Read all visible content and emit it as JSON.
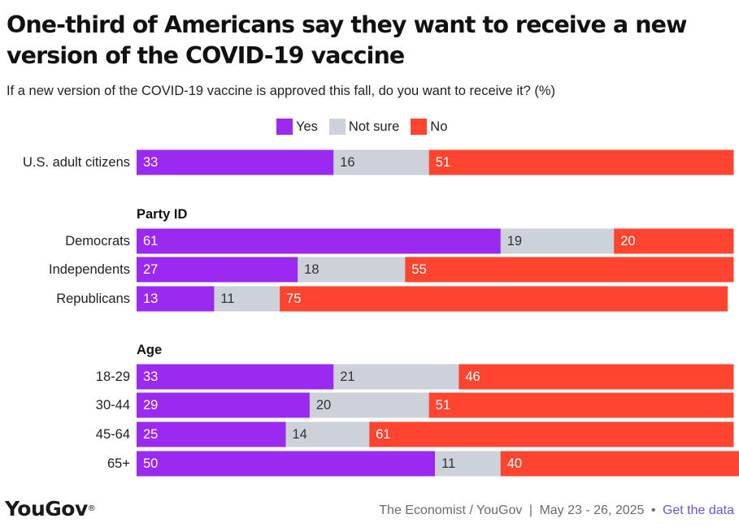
{
  "title": "One-third of Americans say they want to receive a new version of the COVID-19 vaccine",
  "subtitle": "If a new version of the COVID-19 vaccine is approved this fall, do you want to receive it? (%)",
  "colors": {
    "yes": "#9a2af0",
    "not_sure": "#cdd1da",
    "no": "#ff4530"
  },
  "chart_data": {
    "type": "bar",
    "orientation": "horizontal",
    "stacked": true,
    "categories": [
      "U.S. adult citizens",
      "Democrats",
      "Independents",
      "Republicans",
      "18-29",
      "30-44",
      "45-64",
      "65+"
    ],
    "groups": [
      {
        "heading": "",
        "categories": [
          "U.S. adult citizens"
        ]
      },
      {
        "heading": "Party ID",
        "categories": [
          "Democrats",
          "Independents",
          "Republicans"
        ]
      },
      {
        "heading": "Age",
        "categories": [
          "18-29",
          "30-44",
          "45-64",
          "65+"
        ]
      }
    ],
    "series": [
      {
        "name": "Yes",
        "values": [
          33,
          61,
          27,
          13,
          33,
          29,
          25,
          50
        ]
      },
      {
        "name": "Not sure",
        "values": [
          16,
          19,
          18,
          11,
          21,
          20,
          14,
          11
        ]
      },
      {
        "name": "No",
        "values": [
          51,
          20,
          55,
          75,
          46,
          51,
          61,
          40
        ]
      }
    ],
    "xlim": [
      0,
      100
    ],
    "legend_position": "top",
    "grid": false,
    "data_labels": true
  },
  "footer": {
    "logo": "YouGov",
    "logo_mark": "®",
    "source": "The Economist / YouGov",
    "separator": "|",
    "dates": "May 23 - 26, 2025",
    "bullet": "•",
    "link": "Get the data"
  }
}
